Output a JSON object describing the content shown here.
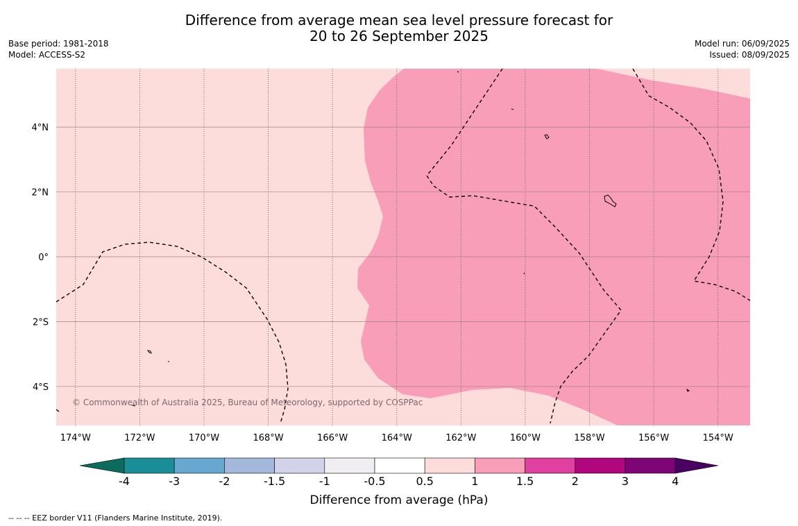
{
  "title_line1": "Difference from average mean sea level pressure forecast for",
  "title_line2": "20 to 26 September 2025",
  "meta_left": [
    "Base period: 1981-2018",
    "Model: ACCESS-S2"
  ],
  "meta_right": [
    "Model run: 06/09/2025",
    "Issued: 08/09/2025"
  ],
  "map": {
    "lon_range": [
      -174.6,
      -153.0
    ],
    "lat_range": [
      -5.2,
      5.8
    ],
    "lon_ticks": [
      -174,
      -172,
      -170,
      -168,
      -166,
      -164,
      -162,
      -160,
      -158,
      -156,
      -154
    ],
    "lon_tick_labels": [
      "174°W",
      "172°W",
      "170°W",
      "168°W",
      "166°W",
      "164°W",
      "162°W",
      "160°W",
      "158°W",
      "156°W",
      "154°W"
    ],
    "lat_ticks": [
      4,
      2,
      0,
      -2,
      -4
    ],
    "lat_tick_labels": [
      "4°N",
      "2°N",
      "0°",
      "2°S",
      "4°S"
    ],
    "background_color": "#fddcdc",
    "anomaly_region_color": "#f99eb8",
    "copyright": "© Commonwealth of Australia 2025, Bureau of Meteorology, supported by COSPPac"
  },
  "colorbar": {
    "label": "Difference from average (hPa)",
    "tick_labels": [
      "-4",
      "-3",
      "-2",
      "-1.5",
      "-1",
      "-0.5",
      "0.5",
      "1",
      "1.5",
      "2",
      "3",
      "4"
    ],
    "under_color": "#0b6b5c",
    "over_color": "#4a0060",
    "colors": [
      "#1a8e96",
      "#68a8d0",
      "#a4b8dc",
      "#d2d2e8",
      "#f0eef2",
      "#ffffff",
      "#fddcdc",
      "#f99eb8",
      "#e040a0",
      "#b0067e",
      "#7d0575"
    ]
  },
  "footer_note": "--  --  -- EEZ border V11 (Flanders Marine Institute, 2019)."
}
